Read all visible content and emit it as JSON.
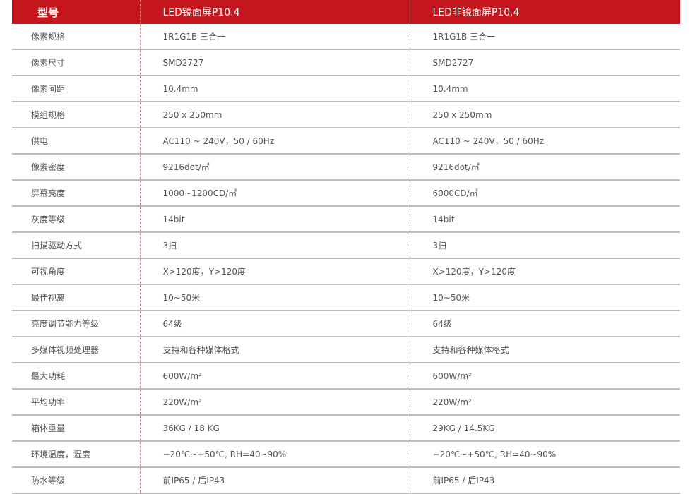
{
  "header": {
    "col0": "型号",
    "col1": "LED镜面屏P10.4",
    "col2": "LED非镜面屏P10.4"
  },
  "accent_color": "#c4161c",
  "rows": [
    {
      "label": "像素规格",
      "a": "1R1G1B 三合一",
      "b": "1R1G1B 三合一"
    },
    {
      "label": "像素尺寸",
      "a": "SMD2727",
      "b": "SMD2727"
    },
    {
      "label": "像素间距",
      "a": "10.4mm",
      "b": "10.4mm"
    },
    {
      "label": "模组规格",
      "a": "250 x 250mm",
      "b": "250 x 250mm"
    },
    {
      "label": "供电",
      "a": "AC110 ~ 240V，50 / 60Hz",
      "b": "AC110 ~ 240V，50 / 60Hz"
    },
    {
      "label": "像素密度",
      "a": "9216dot/㎡",
      "b": "9216dot/㎡"
    },
    {
      "label": "屏幕亮度",
      "a": "1000~1200CD/㎡",
      "b": "6000CD/㎡"
    },
    {
      "label": "灰度等级",
      "a": "14bit",
      "b": "14bit"
    },
    {
      "label": "扫描驱动方式",
      "a": "3扫",
      "b": "3扫"
    },
    {
      "label": "可视角度",
      "a": "X>120度，Y>120度",
      "b": "X>120度，Y>120度"
    },
    {
      "label": "最佳视离",
      "a": "10~50米",
      "b": "10~50米"
    },
    {
      "label": "亮度调节能力等级",
      "a": "64级",
      "b": "64级"
    },
    {
      "label": "多媒体视频处理器",
      "a": "支持和各种媒体格式",
      "b": "支持和各种媒体格式"
    },
    {
      "label": "最大功耗",
      "a": "600W/m²",
      "b": "600W/m²"
    },
    {
      "label": "平均功率",
      "a": "220W/m²",
      "b": "220W/m²"
    },
    {
      "label": "箱体重量",
      "a": "36KG / 18 KG",
      "b": "29KG / 14.5KG"
    },
    {
      "label": "环境温度，湿度",
      "a": "−20℃~+50℃, RH=40~90%",
      "b": "−20℃~+50℃, RH=40~90%"
    },
    {
      "label": "防水等级",
      "a": "前IP65 / 后IP43",
      "b": "前IP65 / 后IP43"
    }
  ]
}
